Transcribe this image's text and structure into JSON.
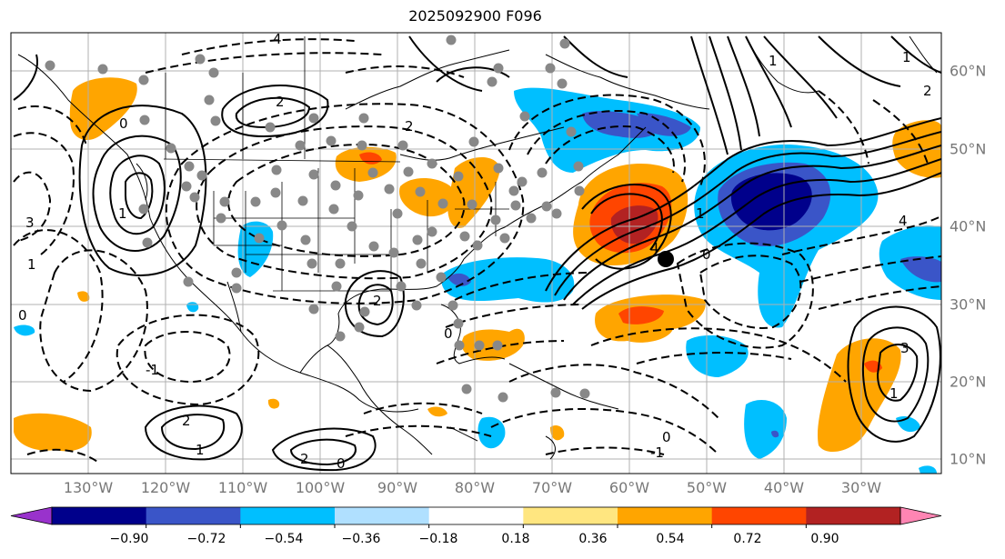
{
  "title": "2025092900 F096",
  "lon_labels": [
    "130°W",
    "120°W",
    "110°W",
    "100°W",
    "90°W",
    "80°W",
    "70°W",
    "60°W",
    "50°W",
    "40°W",
    "30°W"
  ],
  "lat_labels": [
    "60°N",
    "50°N",
    "40°N",
    "30°N",
    "20°N",
    "10°N"
  ],
  "colorbar": {
    "ticks": [
      "−0.90",
      "−0.72",
      "−0.54",
      "−0.36",
      "−0.18",
      "0.18",
      "0.36",
      "0.54",
      "0.72",
      "0.90"
    ],
    "colors": [
      "#9932cc",
      "#00008b",
      "#3a55c8",
      "#00bfff",
      "#b0e0ff",
      "#ffffff",
      "#ffe680",
      "#ffa500",
      "#ff4500",
      "#b22222",
      "#ff85b3"
    ]
  },
  "contour_labels": [
    "0",
    "1",
    "2",
    "2",
    "3",
    "4",
    "0",
    "1",
    "2",
    "1",
    "2",
    "0",
    "-1",
    "4",
    "0",
    "1",
    "2",
    "3",
    "0",
    "-1",
    "1",
    "4",
    "0",
    "1",
    "2",
    "1"
  ]
}
